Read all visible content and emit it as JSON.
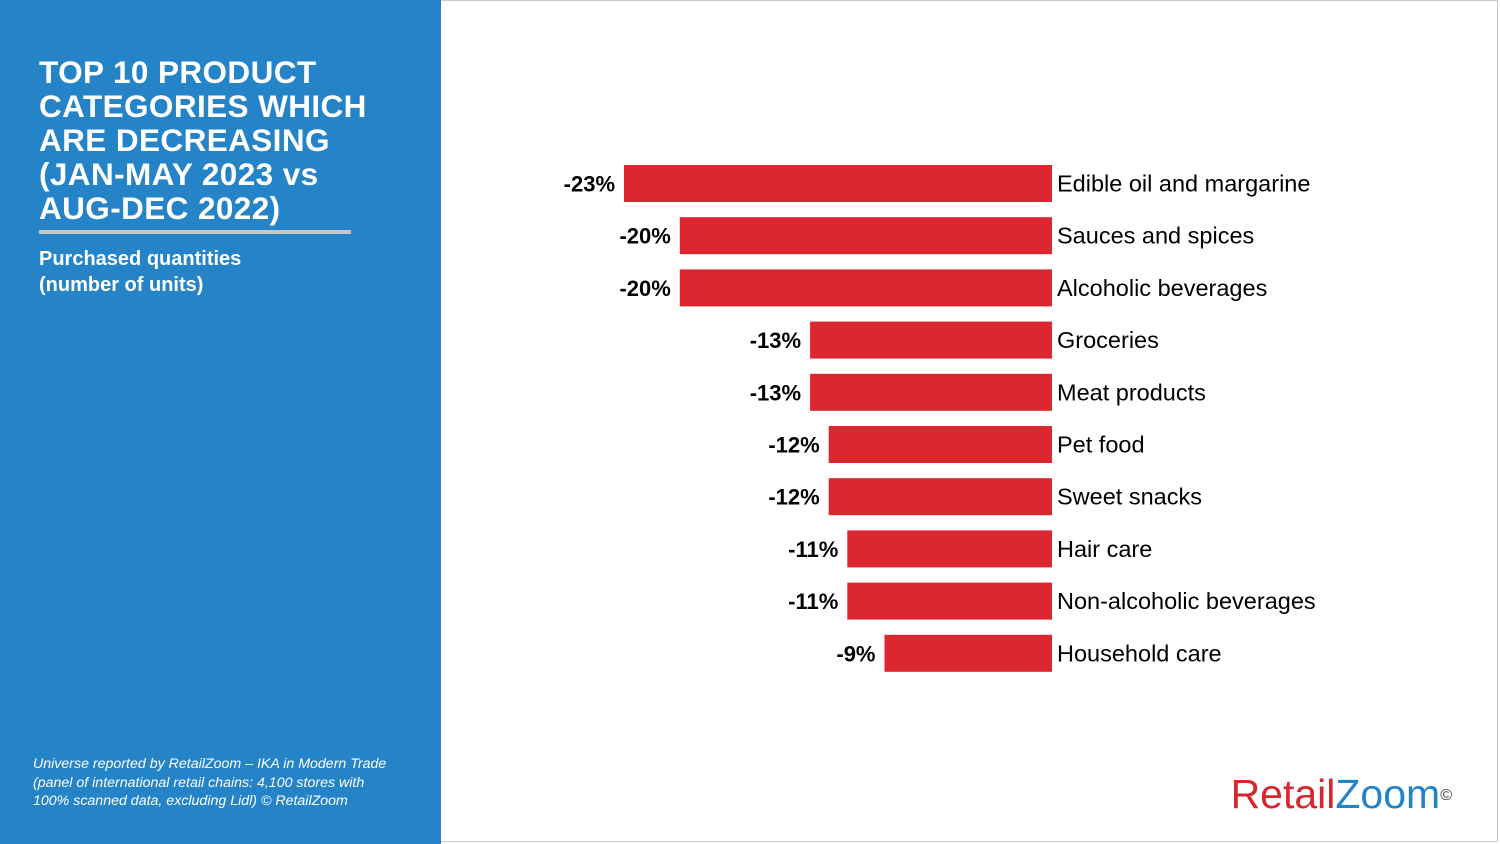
{
  "sidebar": {
    "title": "TOP 10 PRODUCT\nCATEGORIES WHICH\nARE DECREASING\n(JAN-MAY 2023 vs\nAUG-DEC 2022)",
    "subtitle": "Purchased quantities\n(number of units)",
    "footnote": "Universe reported by RetailZoom – IKA in Modern Trade (panel of international retail chains: 4,100 stores with 100% scanned data, excluding Lidl) © RetailZoom"
  },
  "logo": {
    "part1": "Retail",
    "part2": "Zoom",
    "mark": "©",
    "color1": "#d7262e",
    "color2": "#2583c8"
  },
  "colors": {
    "sidebar": "#2583c8",
    "bar": "#dc2630"
  },
  "chart_data": {
    "type": "bar",
    "orientation": "horizontal",
    "title": "TOP 10 PRODUCT CATEGORIES WHICH ARE DECREASING (JAN-MAY 2023 vs AUG-DEC 2022)",
    "subtitle": "Purchased quantities (number of units)",
    "categories": [
      "Edible oil and margarine",
      "Sauces and spices",
      "Alcoholic beverages",
      "Groceries",
      "Meat products",
      "Pet food",
      "Sweet snacks",
      "Hair care",
      "Non-alcoholic beverages",
      "Household care"
    ],
    "values": [
      -23,
      -20,
      -20,
      -13,
      -13,
      -12,
      -12,
      -11,
      -11,
      -9
    ],
    "value_labels": [
      "-23%",
      "-20%",
      "-20%",
      "-13%",
      "-13%",
      "-12%",
      "-12%",
      "-11%",
      "-11%",
      "-9%"
    ],
    "unit": "%",
    "xlim": [
      -25,
      0
    ],
    "grid": false,
    "legend": "none"
  }
}
